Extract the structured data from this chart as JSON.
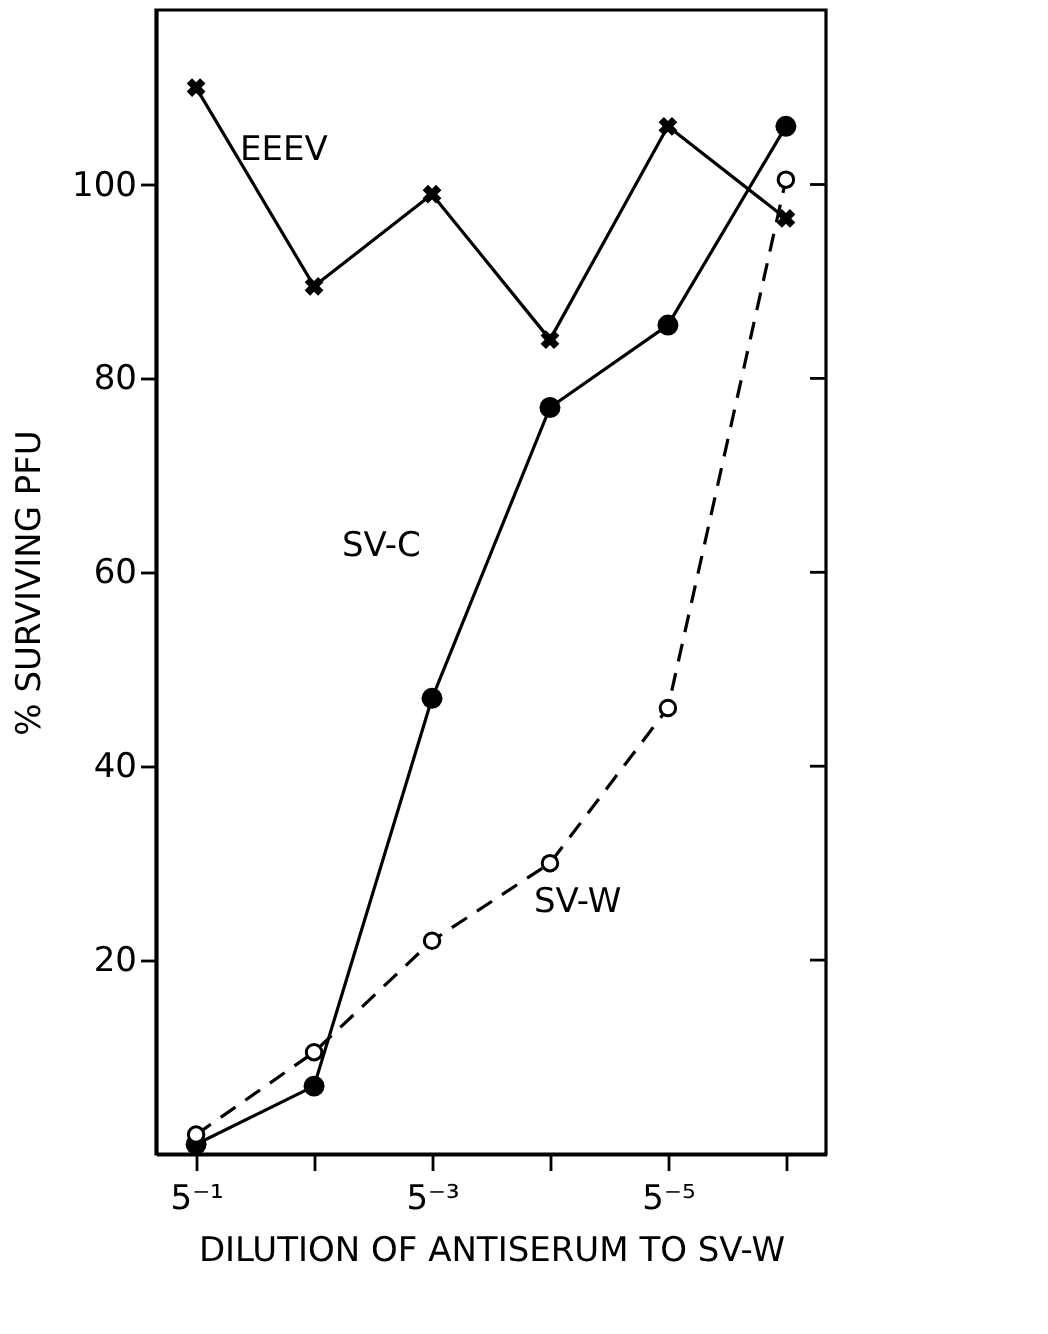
{
  "chart_data": {
    "type": "line",
    "xlabel": "DILUTION OF ANTISERUM TO SV-W",
    "ylabel": "% SURVIVING PFU",
    "categories": [
      "5⁻¹",
      null,
      "5⁻³",
      null,
      "5⁻⁵",
      null
    ],
    "series": [
      {
        "name": "EEEV",
        "color": "#000000",
        "marker": "cross",
        "line_style": "solid",
        "values": [
          110,
          89.5,
          99,
          84,
          106,
          96.5
        ]
      },
      {
        "name": "SV-C",
        "color": "#000000",
        "marker": "circle",
        "line_style": "solid",
        "values": [
          1,
          7,
          47,
          77,
          85.5,
          106
        ]
      },
      {
        "name": "SV-W",
        "color": "#000000",
        "marker": "circle_open",
        "line_style": "dashed",
        "values": [
          2,
          10.5,
          22,
          30,
          46,
          100.5
        ]
      }
    ],
    "ylim": [
      0,
      118
    ],
    "yticks": [
      20,
      40,
      60,
      80,
      100
    ],
    "grid": false
  }
}
